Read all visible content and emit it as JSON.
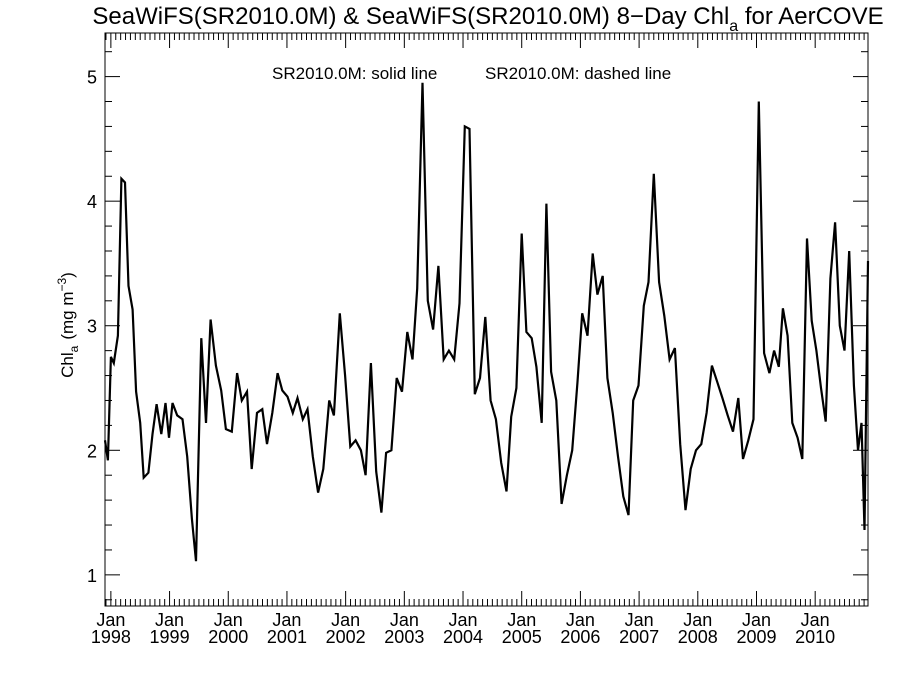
{
  "chart_data": {
    "type": "line",
    "title": {
      "main": "SeaWiFS(SR2010.0M) & SeaWiFS(SR2010.0M) 8−Day Chl",
      "subscript": "a",
      "suffix": " for AerCOVE"
    },
    "legend": {
      "solid": "SR2010.0M: solid line",
      "dashed": "SR2010.0M: dashed line"
    },
    "ylabel": {
      "main": "Chl",
      "subscript": "a",
      "units": "(mg m",
      "units_exp": "−3",
      "units_close": ")"
    },
    "ylim": [
      0.75,
      5.35
    ],
    "yticks": [
      1,
      2,
      3,
      4,
      5
    ],
    "xlim": [
      1997.9,
      2010.9
    ],
    "xticks": [
      {
        "month": "Jan",
        "year": "1998",
        "t": 1998.0
      },
      {
        "month": "Jan",
        "year": "1999",
        "t": 1999.0
      },
      {
        "month": "Jan",
        "year": "2000",
        "t": 2000.0
      },
      {
        "month": "Jan",
        "year": "2001",
        "t": 2001.0
      },
      {
        "month": "Jan",
        "year": "2002",
        "t": 2002.0
      },
      {
        "month": "Jan",
        "year": "2003",
        "t": 2003.0
      },
      {
        "month": "Jan",
        "year": "2004",
        "t": 2004.0
      },
      {
        "month": "Jan",
        "year": "2005",
        "t": 2005.0
      },
      {
        "month": "Jan",
        "year": "2006",
        "t": 2006.0
      },
      {
        "month": "Jan",
        "year": "2007",
        "t": 2007.0
      },
      {
        "month": "Jan",
        "year": "2008",
        "t": 2008.0
      },
      {
        "month": "Jan",
        "year": "2009",
        "t": 2009.0
      },
      {
        "month": "Jan",
        "year": "2010",
        "t": 2010.0
      }
    ],
    "series": [
      {
        "style": "solid",
        "color": "#000000",
        "points": [
          [
            1997.9,
            2.08
          ],
          [
            1997.95,
            1.92
          ],
          [
            1998.0,
            2.75
          ],
          [
            1998.05,
            2.7
          ],
          [
            1998.12,
            2.92
          ],
          [
            1998.18,
            4.18
          ],
          [
            1998.24,
            4.15
          ],
          [
            1998.3,
            3.32
          ],
          [
            1998.37,
            3.13
          ],
          [
            1998.43,
            2.47
          ],
          [
            1998.5,
            2.22
          ],
          [
            1998.56,
            1.78
          ],
          [
            1998.64,
            1.82
          ],
          [
            1998.71,
            2.13
          ],
          [
            1998.78,
            2.37
          ],
          [
            1998.86,
            2.13
          ],
          [
            1998.93,
            2.38
          ],
          [
            1998.99,
            2.1
          ],
          [
            1999.05,
            2.38
          ],
          [
            1999.13,
            2.28
          ],
          [
            1999.22,
            2.25
          ],
          [
            1999.3,
            1.95
          ],
          [
            1999.38,
            1.45
          ],
          [
            1999.45,
            1.11
          ],
          [
            1999.54,
            2.9
          ],
          [
            1999.62,
            2.22
          ],
          [
            1999.7,
            3.05
          ],
          [
            1999.79,
            2.68
          ],
          [
            1999.88,
            2.48
          ],
          [
            1999.96,
            2.17
          ],
          [
            2000.06,
            2.15
          ],
          [
            2000.15,
            2.62
          ],
          [
            2000.23,
            2.4
          ],
          [
            2000.32,
            2.47
          ],
          [
            2000.4,
            1.85
          ],
          [
            2000.49,
            2.3
          ],
          [
            2000.58,
            2.33
          ],
          [
            2000.66,
            2.05
          ],
          [
            2000.75,
            2.3
          ],
          [
            2000.84,
            2.62
          ],
          [
            2000.92,
            2.48
          ],
          [
            2001.01,
            2.43
          ],
          [
            2001.1,
            2.3
          ],
          [
            2001.18,
            2.42
          ],
          [
            2001.27,
            2.25
          ],
          [
            2001.35,
            2.33
          ],
          [
            2001.44,
            1.95
          ],
          [
            2001.53,
            1.66
          ],
          [
            2001.62,
            1.85
          ],
          [
            2001.72,
            2.4
          ],
          [
            2001.8,
            2.28
          ],
          [
            2001.9,
            3.1
          ],
          [
            2001.99,
            2.6
          ],
          [
            2002.08,
            2.03
          ],
          [
            2002.17,
            2.08
          ],
          [
            2002.26,
            2.0
          ],
          [
            2002.34,
            1.8
          ],
          [
            2002.43,
            2.7
          ],
          [
            2002.52,
            1.83
          ],
          [
            2002.61,
            1.5
          ],
          [
            2002.69,
            1.98
          ],
          [
            2002.78,
            2.0
          ],
          [
            2002.87,
            2.58
          ],
          [
            2002.96,
            2.47
          ],
          [
            2003.05,
            2.95
          ],
          [
            2003.14,
            2.73
          ],
          [
            2003.22,
            3.3
          ],
          [
            2003.31,
            4.95
          ],
          [
            2003.4,
            3.2
          ],
          [
            2003.49,
            2.97
          ],
          [
            2003.58,
            3.48
          ],
          [
            2003.67,
            2.73
          ],
          [
            2003.76,
            2.8
          ],
          [
            2003.85,
            2.73
          ],
          [
            2003.94,
            3.18
          ],
          [
            2004.03,
            4.6
          ],
          [
            2004.11,
            4.58
          ],
          [
            2004.2,
            2.45
          ],
          [
            2004.29,
            2.58
          ],
          [
            2004.38,
            3.07
          ],
          [
            2004.47,
            2.4
          ],
          [
            2004.56,
            2.25
          ],
          [
            2004.65,
            1.9
          ],
          [
            2004.74,
            1.67
          ],
          [
            2004.82,
            2.27
          ],
          [
            2004.91,
            2.5
          ],
          [
            2005.0,
            3.74
          ],
          [
            2005.08,
            2.95
          ],
          [
            2005.17,
            2.9
          ],
          [
            2005.25,
            2.67
          ],
          [
            2005.34,
            2.22
          ],
          [
            2005.42,
            3.98
          ],
          [
            2005.5,
            2.63
          ],
          [
            2005.59,
            2.4
          ],
          [
            2005.68,
            1.57
          ],
          [
            2005.77,
            1.8
          ],
          [
            2005.86,
            2.0
          ],
          [
            2005.95,
            2.55
          ],
          [
            2006.03,
            3.1
          ],
          [
            2006.12,
            2.92
          ],
          [
            2006.21,
            3.58
          ],
          [
            2006.29,
            3.25
          ],
          [
            2006.38,
            3.4
          ],
          [
            2006.46,
            2.58
          ],
          [
            2006.55,
            2.3
          ],
          [
            2006.64,
            1.95
          ],
          [
            2006.73,
            1.63
          ],
          [
            2006.82,
            1.48
          ],
          [
            2006.9,
            2.4
          ],
          [
            2006.99,
            2.52
          ],
          [
            2007.08,
            3.16
          ],
          [
            2007.16,
            3.35
          ],
          [
            2007.25,
            4.22
          ],
          [
            2007.34,
            3.35
          ],
          [
            2007.43,
            3.08
          ],
          [
            2007.52,
            2.73
          ],
          [
            2007.61,
            2.82
          ],
          [
            2007.7,
            2.05
          ],
          [
            2007.79,
            1.52
          ],
          [
            2007.88,
            1.85
          ],
          [
            2007.97,
            2.0
          ],
          [
            2008.06,
            2.05
          ],
          [
            2008.15,
            2.3
          ],
          [
            2008.24,
            2.68
          ],
          [
            2008.33,
            2.55
          ],
          [
            2008.42,
            2.42
          ],
          [
            2008.51,
            2.28
          ],
          [
            2008.6,
            2.15
          ],
          [
            2008.69,
            2.42
          ],
          [
            2008.77,
            1.93
          ],
          [
            2008.86,
            2.08
          ],
          [
            2008.95,
            2.25
          ],
          [
            2009.04,
            4.8
          ],
          [
            2009.13,
            2.78
          ],
          [
            2009.22,
            2.62
          ],
          [
            2009.3,
            2.8
          ],
          [
            2009.38,
            2.67
          ],
          [
            2009.45,
            3.14
          ],
          [
            2009.53,
            2.92
          ],
          [
            2009.61,
            2.22
          ],
          [
            2009.7,
            2.1
          ],
          [
            2009.78,
            1.93
          ],
          [
            2009.86,
            3.7
          ],
          [
            2009.94,
            3.04
          ],
          [
            2010.02,
            2.8
          ],
          [
            2010.1,
            2.5
          ],
          [
            2010.18,
            2.23
          ],
          [
            2010.26,
            3.38
          ],
          [
            2010.34,
            3.83
          ],
          [
            2010.42,
            3.0
          ],
          [
            2010.5,
            2.8
          ],
          [
            2010.58,
            3.6
          ],
          [
            2010.66,
            2.52
          ],
          [
            2010.73,
            2.0
          ],
          [
            2010.79,
            2.22
          ],
          [
            2010.84,
            1.36
          ],
          [
            2010.9,
            3.52
          ]
        ]
      }
    ]
  }
}
